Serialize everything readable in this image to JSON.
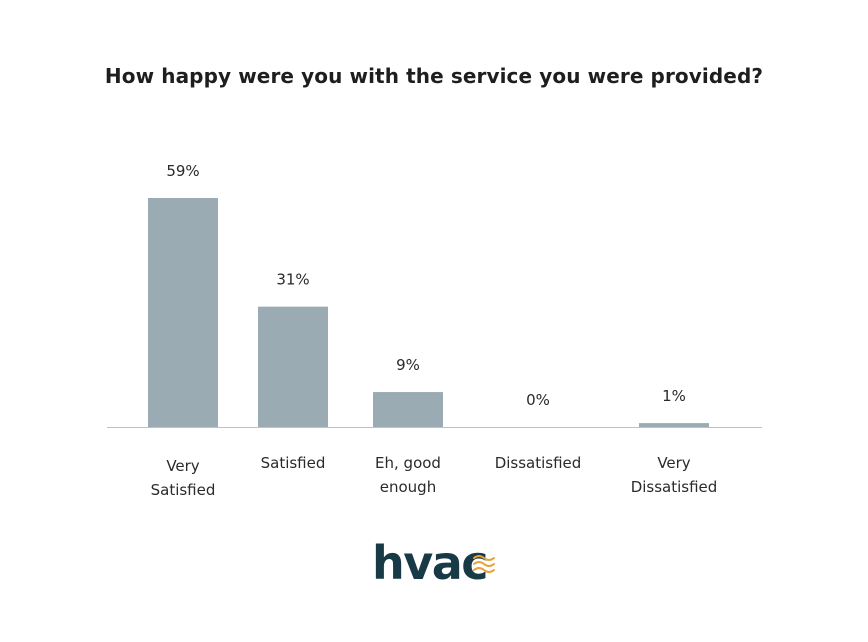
{
  "chart_data": {
    "type": "bar",
    "title": "How happy were you with the service you were provided?",
    "categories": [
      [
        "Very",
        "Satisfied"
      ],
      [
        "Satisfied"
      ],
      [
        "Eh, good",
        "enough"
      ],
      [
        "Dissatisfied"
      ],
      [
        "Very",
        "Dissatisfied"
      ]
    ],
    "values": [
      59,
      31,
      9,
      0,
      1
    ],
    "value_labels": [
      "59%",
      "31%",
      "9%",
      "0%",
      "1%"
    ],
    "ylim": [
      0,
      59
    ],
    "grid": false,
    "legend": "none",
    "bar_color": "#9aabb3",
    "axis_color": "#b9c3c8"
  },
  "logo": {
    "text": "hvac",
    "text_color": "#173a46",
    "wave_color": "#e8a23a",
    "icon": "wave-icon"
  }
}
